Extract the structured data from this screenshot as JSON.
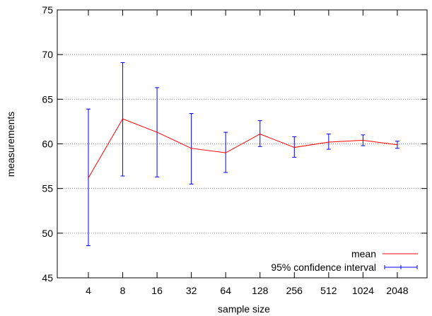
{
  "chart_data": {
    "type": "line",
    "xlabel": "sample size",
    "ylabel": "measurements",
    "x_scale": "log2",
    "categories": [
      "4",
      "8",
      "16",
      "32",
      "64",
      "128",
      "256",
      "512",
      "1024",
      "2048"
    ],
    "ylim": [
      45,
      75
    ],
    "yticks": [
      "45",
      "50",
      "55",
      "60",
      "65",
      "70",
      "75"
    ],
    "grid": "horizontal-dotted",
    "legend_position": "bottom-right",
    "series": [
      {
        "name": "mean",
        "color": "#ff0000",
        "values": [
          56.2,
          62.8,
          61.3,
          59.5,
          59.0,
          61.1,
          59.6,
          60.2,
          60.4,
          59.9
        ]
      },
      {
        "name": "95% confidence interval",
        "color": "#0000ff",
        "lower": [
          48.6,
          56.4,
          56.3,
          55.5,
          56.8,
          59.7,
          58.5,
          59.4,
          59.8,
          59.5
        ],
        "upper": [
          63.9,
          69.1,
          66.3,
          63.4,
          61.3,
          62.6,
          60.8,
          61.1,
          61.0,
          60.3
        ]
      }
    ]
  }
}
